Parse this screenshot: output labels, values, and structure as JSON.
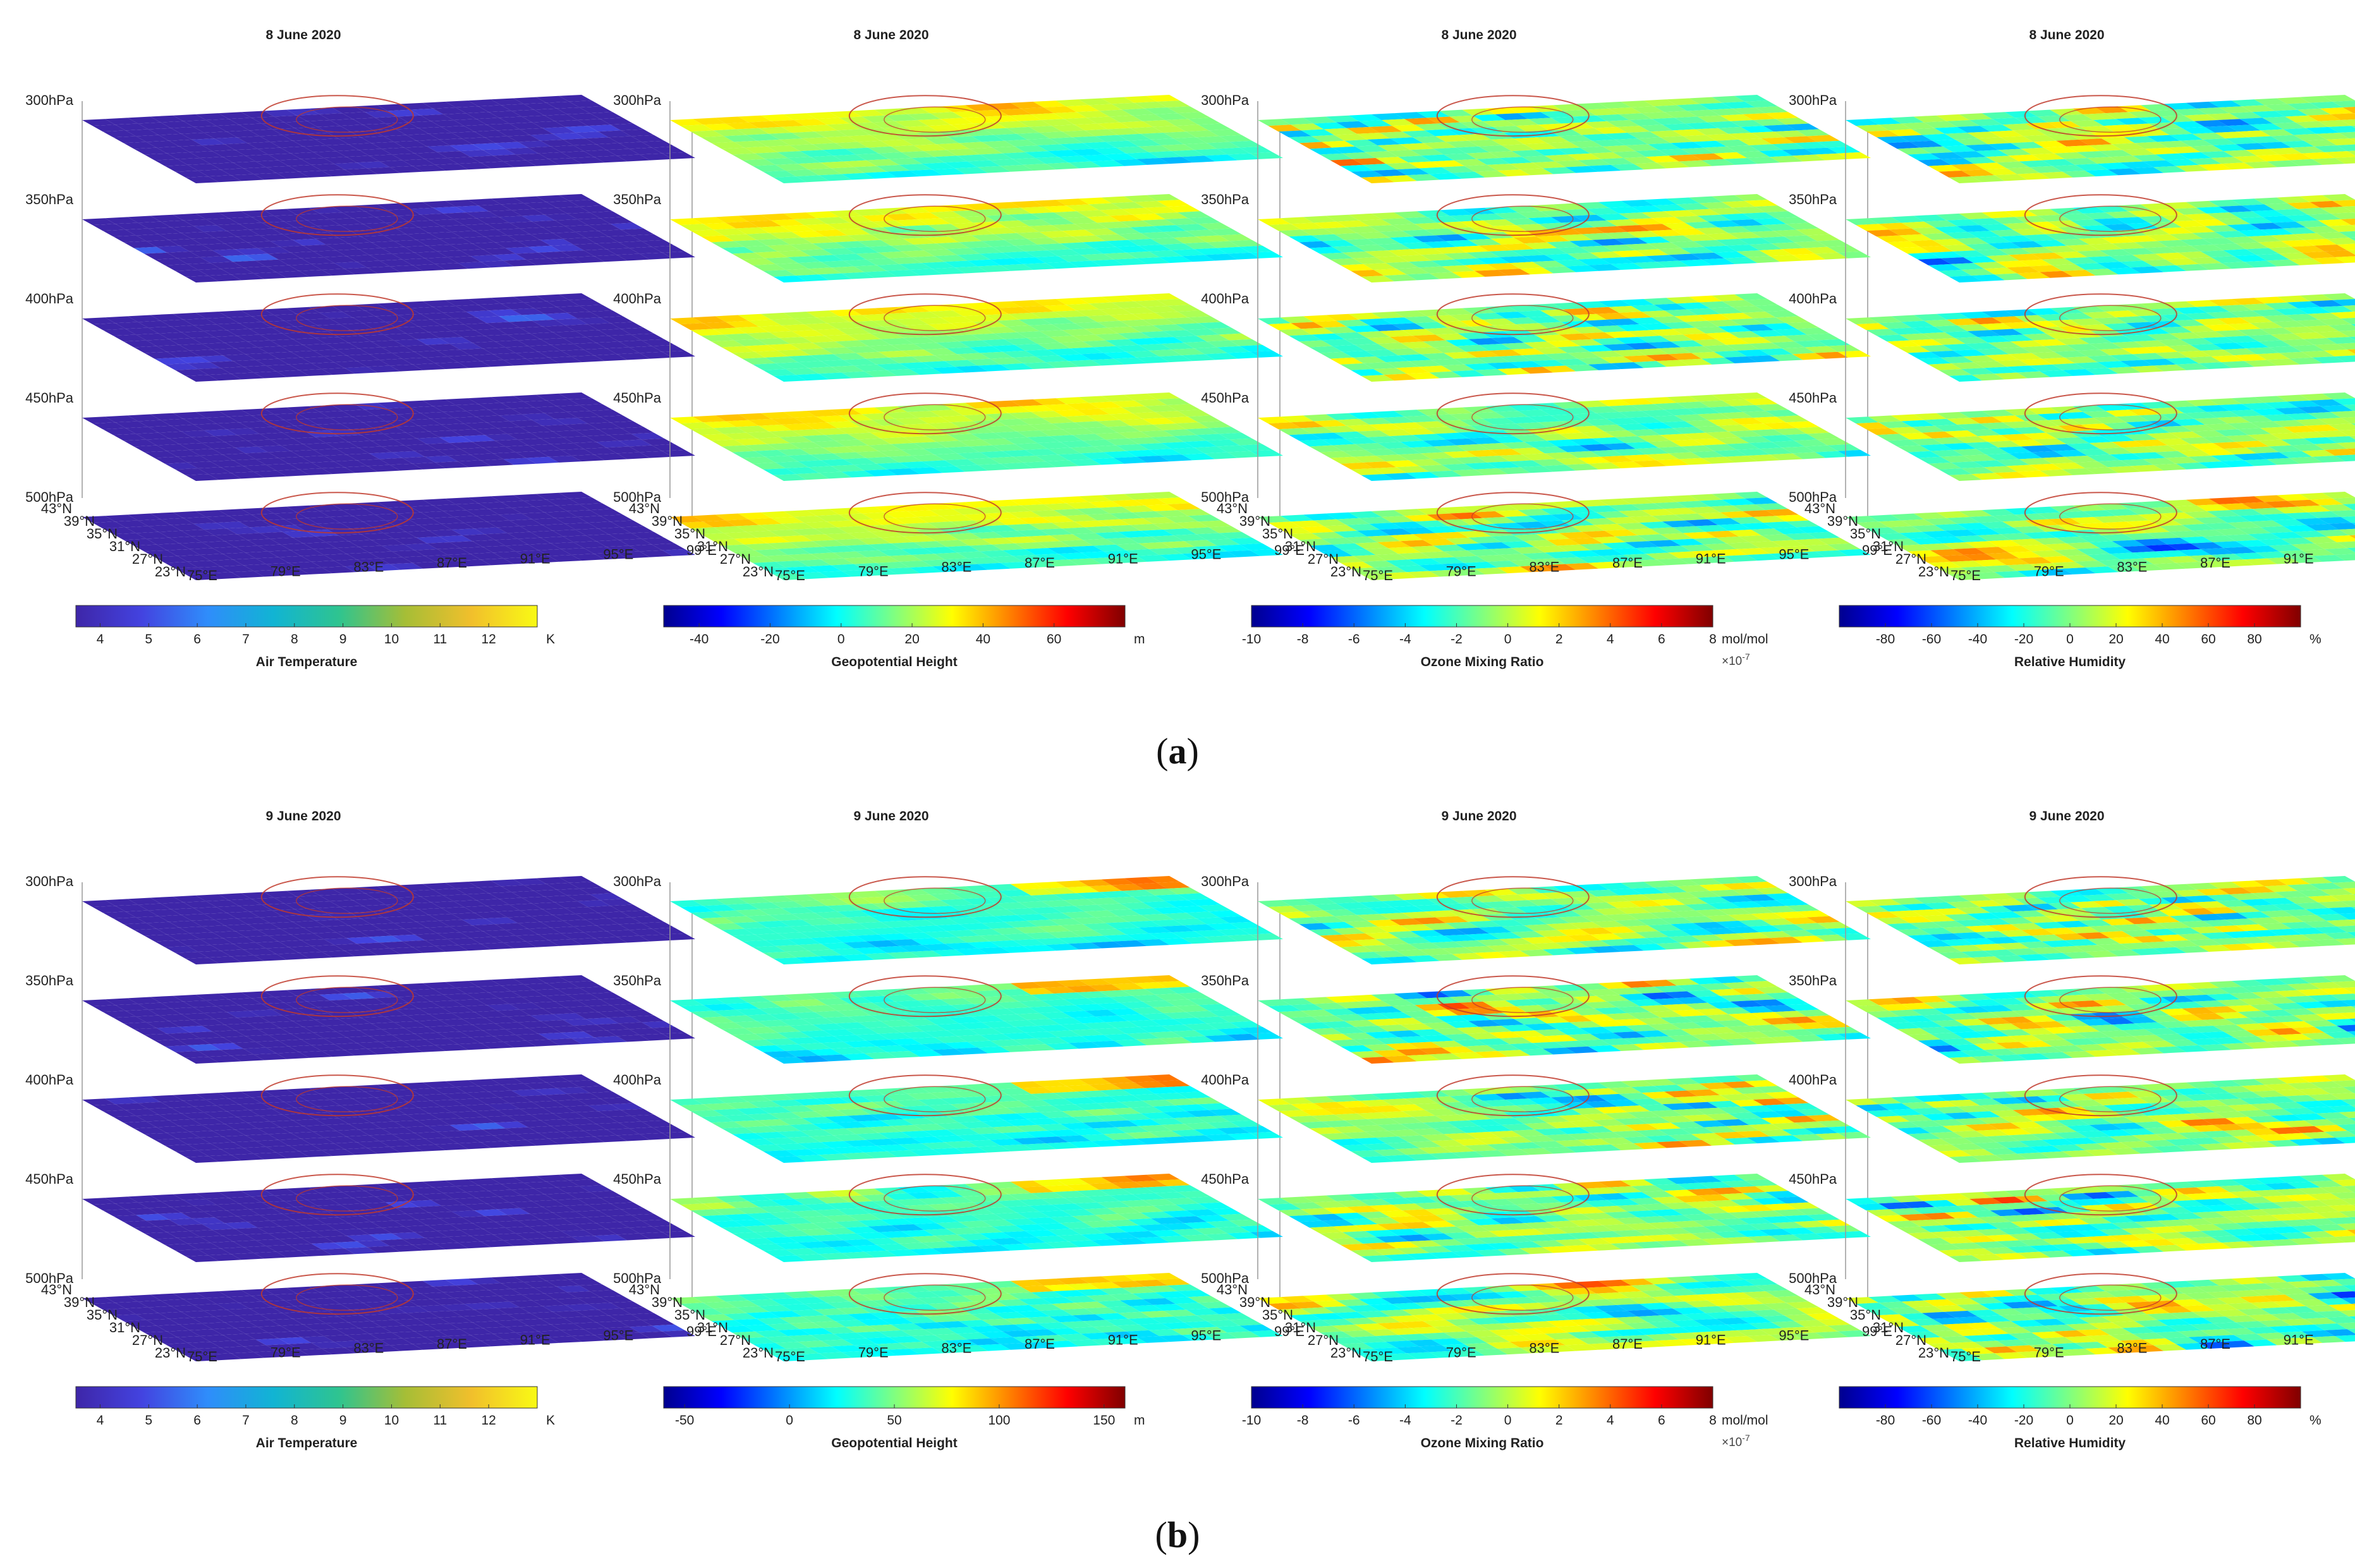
{
  "figure": {
    "panel_labels": [
      "a",
      "b"
    ]
  },
  "common": {
    "levels": [
      "300hPa",
      "350hPa",
      "400hPa",
      "450hPa",
      "500hPa"
    ],
    "lat_ticks": [
      "43°N",
      "39°N",
      "35°N",
      "31°N",
      "27°N",
      "23°N"
    ],
    "lon_ticks": [
      "75°E",
      "79°E",
      "83°E",
      "87°E",
      "91°E",
      "95°E",
      "99°E"
    ]
  },
  "colors": {
    "parula": [
      "#3e26a8",
      "#4343e0",
      "#2f8dfb",
      "#11b4d3",
      "#2fc48f",
      "#a6be36",
      "#f1bf2c",
      "#f9fa14"
    ],
    "jet": [
      "#00008f",
      "#0000ff",
      "#0080ff",
      "#00ffff",
      "#80ff80",
      "#ffff00",
      "#ff8000",
      "#ff0000",
      "#800000"
    ],
    "boundary": "#c0392b",
    "frame": "#555555"
  },
  "chart_data": [
    {
      "type": "heatmap",
      "id": "a1",
      "row": 0,
      "title": "8 June 2020",
      "variable": "Air Temperature",
      "unit": "K",
      "exponent": "",
      "colormap": "parula",
      "clim": [
        3.5,
        13
      ],
      "cbar_ticks": [
        "4",
        "5",
        "6",
        "7",
        "8",
        "9",
        "10",
        "11",
        "12"
      ],
      "cbar_tick_values": [
        4,
        5,
        6,
        7,
        8,
        9,
        10,
        11,
        12
      ]
    },
    {
      "type": "heatmap",
      "id": "a2",
      "row": 0,
      "title": "8 June 2020",
      "variable": "Geopotential Height",
      "unit": "m",
      "exponent": "",
      "colormap": "jet",
      "clim": [
        -50,
        80
      ],
      "cbar_ticks": [
        "-40",
        "-20",
        "0",
        "20",
        "40",
        "60"
      ],
      "cbar_tick_values": [
        -40,
        -20,
        0,
        20,
        40,
        60
      ]
    },
    {
      "type": "heatmap",
      "id": "a3",
      "row": 0,
      "title": "8 June 2020",
      "variable": "Ozone Mixing Ratio",
      "unit": "mol/mol",
      "exponent": "×10",
      "exponent_power": "-7",
      "colormap": "jet",
      "clim": [
        -10,
        8
      ],
      "cbar_ticks": [
        "-10",
        "-8",
        "-6",
        "-4",
        "-2",
        "0",
        "2",
        "4",
        "6",
        "8"
      ],
      "cbar_tick_values": [
        -10,
        -8,
        -6,
        -4,
        -2,
        0,
        2,
        4,
        6,
        8
      ]
    },
    {
      "type": "heatmap",
      "id": "a4",
      "row": 0,
      "title": "8 June 2020",
      "variable": "Relative Humidity",
      "unit": "%",
      "exponent": "",
      "colormap": "jet",
      "clim": [
        -100,
        100
      ],
      "cbar_ticks": [
        "-80",
        "-60",
        "-40",
        "-20",
        "0",
        "20",
        "40",
        "60",
        "80"
      ],
      "cbar_tick_values": [
        -80,
        -60,
        -40,
        -20,
        0,
        20,
        40,
        60,
        80
      ]
    },
    {
      "type": "heatmap",
      "id": "b1",
      "row": 1,
      "title": "9 June 2020",
      "variable": "Air Temperature",
      "unit": "K",
      "exponent": "",
      "colormap": "parula",
      "clim": [
        3.5,
        13
      ],
      "cbar_ticks": [
        "4",
        "5",
        "6",
        "7",
        "8",
        "9",
        "10",
        "11",
        "12"
      ],
      "cbar_tick_values": [
        4,
        5,
        6,
        7,
        8,
        9,
        10,
        11,
        12
      ]
    },
    {
      "type": "heatmap",
      "id": "b2",
      "row": 1,
      "title": "9 June 2020",
      "variable": "Geopotential Height",
      "unit": "m",
      "exponent": "",
      "colormap": "jet",
      "clim": [
        -60,
        160
      ],
      "cbar_ticks": [
        "-50",
        "0",
        "50",
        "100",
        "150"
      ],
      "cbar_tick_values": [
        -50,
        0,
        50,
        100,
        150
      ]
    },
    {
      "type": "heatmap",
      "id": "b3",
      "row": 1,
      "title": "9 June 2020",
      "variable": "Ozone Mixing Ratio",
      "unit": "mol/mol",
      "exponent": "×10",
      "exponent_power": "-7",
      "colormap": "jet",
      "clim": [
        -10,
        8
      ],
      "cbar_ticks": [
        "-10",
        "-8",
        "-6",
        "-4",
        "-2",
        "0",
        "2",
        "4",
        "6",
        "8"
      ],
      "cbar_tick_values": [
        -10,
        -8,
        -6,
        -4,
        -2,
        0,
        2,
        4,
        6,
        8
      ]
    },
    {
      "type": "heatmap",
      "id": "b4",
      "row": 1,
      "title": "9 June 2020",
      "variable": "Relative Humidity",
      "unit": "%",
      "exponent": "",
      "colormap": "jet",
      "clim": [
        -100,
        100
      ],
      "cbar_ticks": [
        "-80",
        "-60",
        "-40",
        "-20",
        "0",
        "20",
        "40",
        "60",
        "80"
      ],
      "cbar_tick_values": [
        -80,
        -60,
        -40,
        -20,
        0,
        20,
        40,
        60,
        80
      ]
    }
  ]
}
